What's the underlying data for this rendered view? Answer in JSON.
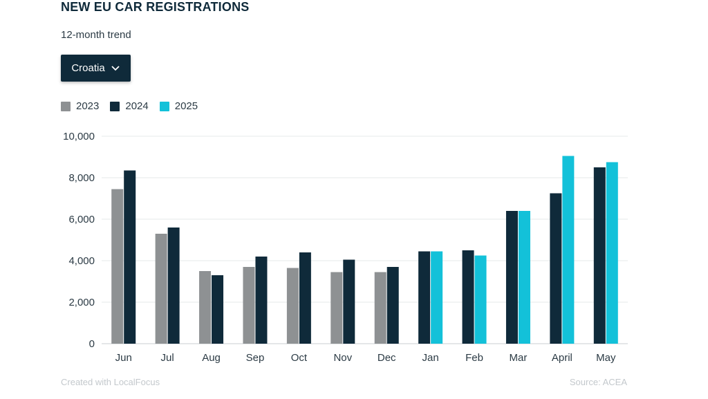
{
  "header": {
    "title": "NEW EU CAR REGISTRATIONS",
    "subtitle": "12-month trend"
  },
  "selector": {
    "selected": "Croatia",
    "icon": "chevron-down-icon"
  },
  "legend": [
    {
      "label": "2023",
      "color": "#8e9193"
    },
    {
      "label": "2024",
      "color": "#0f2a3a"
    },
    {
      "label": "2025",
      "color": "#13c1d9"
    }
  ],
  "footer": {
    "left": "Created with LocalFocus",
    "right": "Source: ACEA"
  },
  "chart_data": {
    "type": "bar",
    "categories": [
      "Jun",
      "Jul",
      "Aug",
      "Sep",
      "Oct",
      "Nov",
      "Dec",
      "Jan",
      "Feb",
      "Mar",
      "April",
      "May"
    ],
    "series": [
      {
        "name": "2023",
        "color": "#8e9193",
        "values": [
          7450,
          5300,
          3500,
          3700,
          3650,
          3450,
          3450,
          null,
          null,
          null,
          null,
          null
        ]
      },
      {
        "name": "2024",
        "color": "#0f2a3a",
        "values": [
          8350,
          5600,
          3300,
          4200,
          4400,
          4050,
          3700,
          4450,
          4500,
          6400,
          7250,
          8500
        ]
      },
      {
        "name": "2025",
        "color": "#13c1d9",
        "values": [
          null,
          null,
          null,
          null,
          null,
          null,
          null,
          4450,
          4250,
          6400,
          9050,
          8750
        ]
      }
    ],
    "yticks": [
      "0",
      "2,000",
      "4,000",
      "6,000",
      "8,000",
      "10,000"
    ],
    "ytick_values": [
      0,
      2000,
      4000,
      6000,
      8000,
      10000
    ],
    "ylim": [
      0,
      10000
    ],
    "grid": true,
    "legend_position": "top-left"
  }
}
